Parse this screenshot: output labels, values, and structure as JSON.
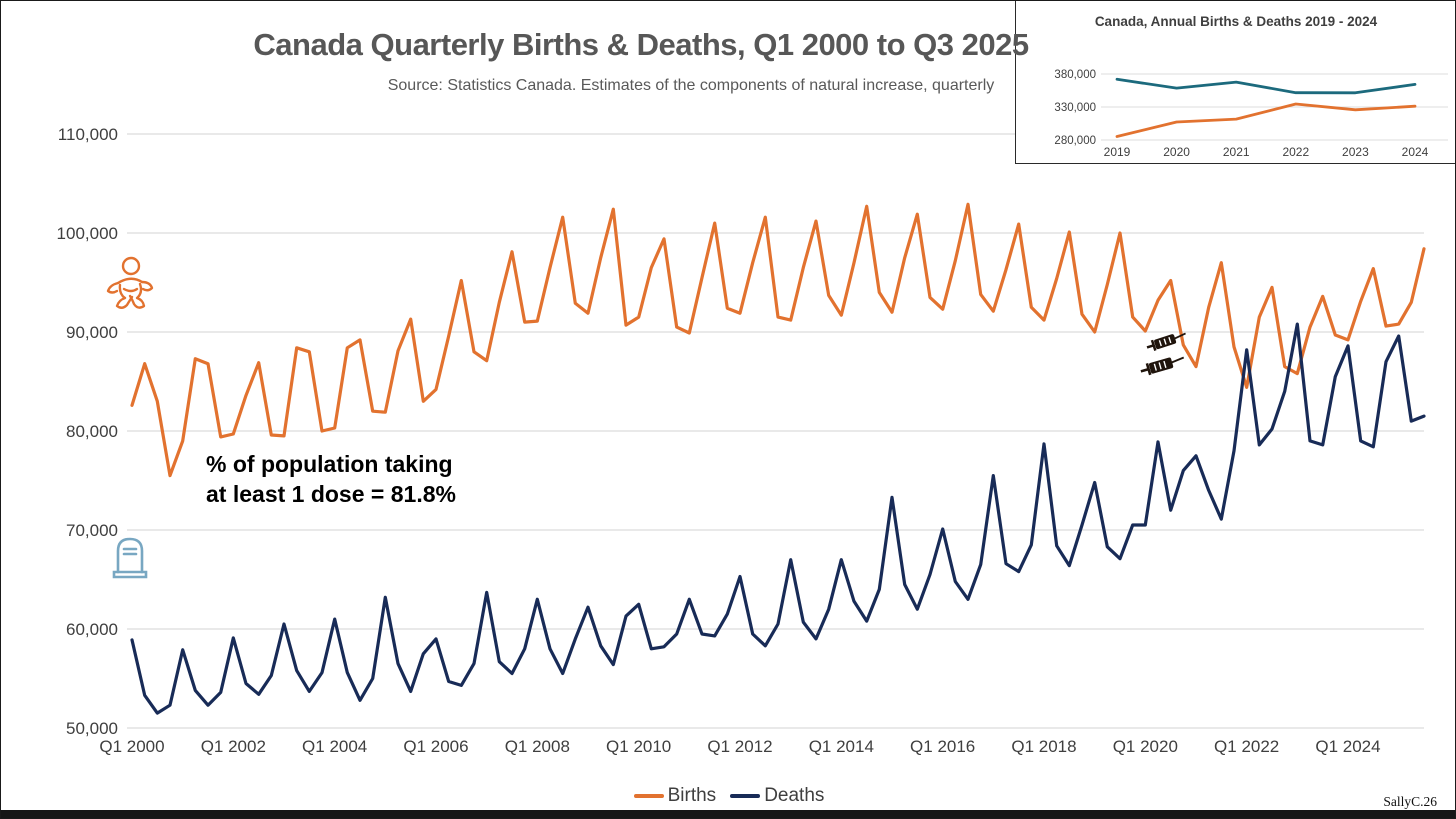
{
  "page": {
    "title": "Canada Quarterly Births & Deaths, Q1 2000 to Q3 2025",
    "subtitle": "Source: Statistics Canada. Estimates of the components of natural increase, quarterly",
    "annotation_line1": "% of population taking",
    "annotation_line2": "at least 1 dose = 81.8%",
    "signature": "SallyC.26"
  },
  "colors": {
    "births": "#E2722F",
    "deaths": "#182B57",
    "inset_births": "#1C6A7D",
    "inset_deaths": "#E2722F",
    "grid": "#DCDCDC",
    "title_text": "#575757",
    "axis_text": "#3F3F3F",
    "baby_icon": "#E2722F",
    "tombstone_icon": "#78A7C2",
    "syringe_icon": "#20150D"
  },
  "legend": [
    {
      "label": "Births",
      "color": "#E2722F"
    },
    {
      "label": "Deaths",
      "color": "#182B57"
    }
  ],
  "icons": [
    "baby-icon",
    "tombstone-icon",
    "syringe-icon",
    "syringe-icon"
  ],
  "chart_data": [
    {
      "type": "line",
      "title": "Canada Quarterly Births & Deaths, Q1 2000 to Q3 2025",
      "xlabel": "",
      "ylabel": "",
      "ylim": [
        50000,
        110000
      ],
      "yticks": [
        50000,
        60000,
        70000,
        80000,
        90000,
        100000,
        110000
      ],
      "grid": true,
      "legend_position": "bottom",
      "x_start": "Q1 2000",
      "x_end": "Q3 2025",
      "x_tick_labels": [
        "Q1 2000",
        "Q1 2002",
        "Q1 2004",
        "Q1 2006",
        "Q1 2008",
        "Q1 2010",
        "Q1 2012",
        "Q1 2014",
        "Q1 2016",
        "Q1 2018",
        "Q1 2020",
        "Q1 2022",
        "Q1 2024"
      ],
      "x_tick_every_n_quarters": 8,
      "series": [
        {
          "name": "Births",
          "color": "#E2722F",
          "values": [
            82600,
            86800,
            83000,
            75500,
            79000,
            87300,
            86800,
            79400,
            79700,
            83600,
            86900,
            79600,
            79500,
            88400,
            88000,
            80000,
            80300,
            88400,
            89200,
            82000,
            81900,
            88100,
            91300,
            83000,
            84200,
            89600,
            95200,
            88000,
            87100,
            93000,
            98100,
            91000,
            91100,
            96500,
            101600,
            92900,
            91900,
            97500,
            102400,
            90700,
            91500,
            96500,
            99400,
            90500,
            89900,
            95500,
            101000,
            92400,
            91900,
            97000,
            101600,
            91500,
            91200,
            96500,
            101200,
            93700,
            91700,
            97000,
            102700,
            94000,
            92000,
            97500,
            101900,
            93500,
            92300,
            97200,
            102900,
            93800,
            92100,
            96300,
            100900,
            92500,
            91200,
            95400,
            100100,
            91800,
            90000,
            94800,
            100000,
            91500,
            90100,
            93200,
            95200,
            88700,
            86500,
            92500,
            97000,
            88500,
            84400,
            91500,
            94500,
            86500,
            85800,
            90500,
            93600,
            89700,
            89200,
            93100,
            96400,
            90600,
            90800,
            93000,
            98400
          ]
        },
        {
          "name": "Deaths",
          "color": "#182B57",
          "values": [
            58900,
            53300,
            51500,
            52300,
            57900,
            53800,
            52300,
            53600,
            59100,
            54500,
            53400,
            55300,
            60500,
            55800,
            53700,
            55600,
            61000,
            55600,
            52800,
            55000,
            63200,
            56500,
            53700,
            57500,
            59000,
            54700,
            54300,
            56500,
            63700,
            56700,
            55500,
            58000,
            63000,
            58000,
            55500,
            59000,
            62200,
            58300,
            56400,
            61300,
            62500,
            58000,
            58200,
            59500,
            63000,
            59500,
            59300,
            61500,
            65300,
            59500,
            58300,
            60500,
            67000,
            60700,
            59000,
            62000,
            67000,
            62800,
            60800,
            64000,
            73300,
            64500,
            62000,
            65500,
            70100,
            64800,
            63000,
            66500,
            75500,
            66600,
            65800,
            68500,
            78700,
            68400,
            66400,
            70500,
            74800,
            68300,
            67100,
            70500,
            70500,
            78900,
            72000,
            76000,
            77500,
            74000,
            71100,
            78000,
            88200,
            78600,
            80200,
            84000,
            90800,
            79000,
            78600,
            85500,
            88600,
            79000,
            78400,
            87000,
            89600,
            81000,
            81500
          ]
        }
      ]
    },
    {
      "type": "line",
      "title": "Canada, Annual Births & Deaths 2019 - 2024",
      "ylim": [
        280000,
        380000
      ],
      "yticks": [
        280000,
        330000,
        380000
      ],
      "grid": true,
      "legend_position": "none",
      "x": [
        2019,
        2020,
        2021,
        2022,
        2023,
        2024
      ],
      "series": [
        {
          "name": "Births",
          "color": "#1C6A7D",
          "values": [
            372000,
            358600,
            367700,
            351700,
            351500,
            364300
          ]
        },
        {
          "name": "Deaths",
          "color": "#E2722F",
          "values": [
            285300,
            307200,
            311600,
            334600,
            325800,
            331200
          ]
        }
      ]
    }
  ]
}
